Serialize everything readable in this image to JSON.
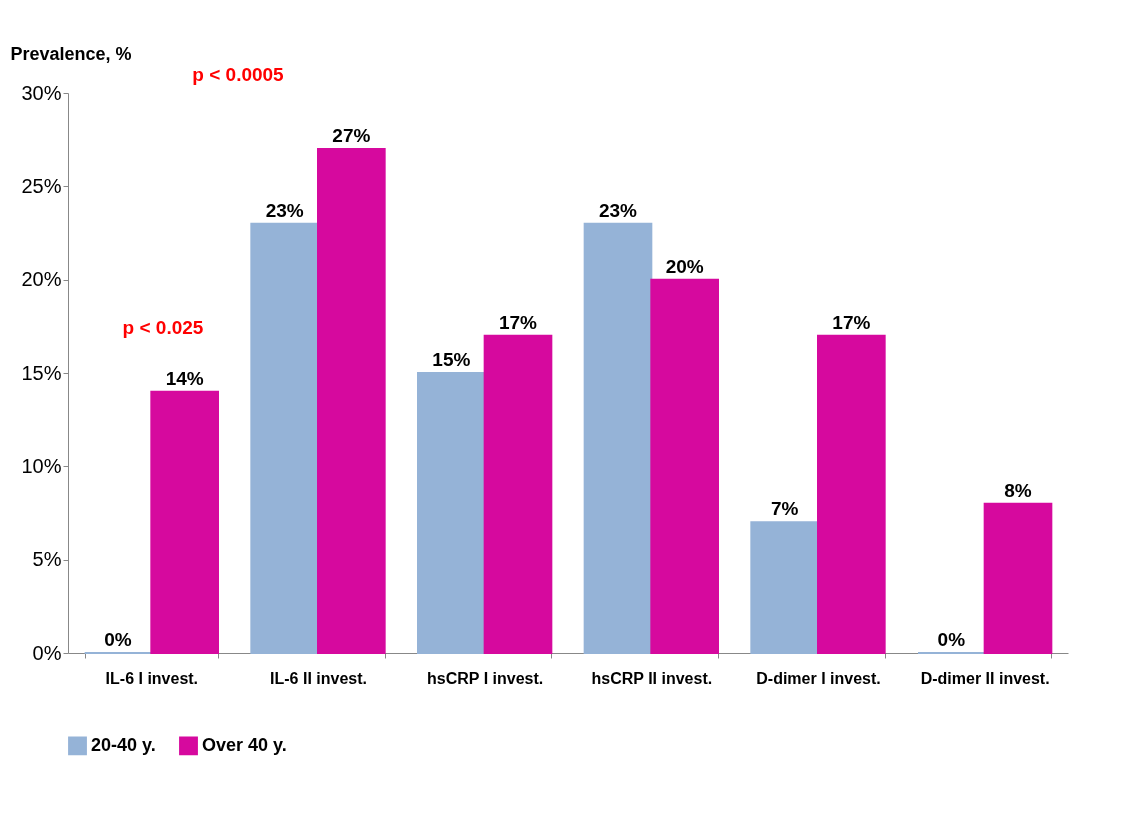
{
  "chart_data": {
    "type": "bar",
    "ylabel": "Prevalence, %",
    "categories": [
      "IL-6 I invest.",
      "IL-6 II invest.",
      "hsCRP I invest.",
      "hsCRP II invest.",
      "D-dimer I invest.",
      "D-dimer II invest."
    ],
    "series": [
      {
        "name": "20-40 y.",
        "color": "#95b3d7",
        "values": [
          0,
          23,
          15,
          23,
          7,
          0
        ],
        "value_labels": [
          "0%",
          "23%",
          "15%",
          "23%",
          "7%",
          "0%"
        ]
      },
      {
        "name": "Over 40 y.",
        "color": "#d6099e",
        "values": [
          14,
          27,
          17,
          20,
          17,
          8
        ],
        "value_labels": [
          "14%",
          "27%",
          "17%",
          "20%",
          "17%",
          "8%"
        ]
      }
    ],
    "ylim": [
      0,
      30
    ],
    "yticks": [
      {
        "value": 0,
        "label": "0%"
      },
      {
        "value": 5,
        "label": "5%"
      },
      {
        "value": 10,
        "label": "10%"
      },
      {
        "value": 15,
        "label": "15%"
      },
      {
        "value": 20,
        "label": "20%"
      },
      {
        "value": 25,
        "label": "25%"
      },
      {
        "value": 30,
        "label": "30%"
      }
    ],
    "grid": false,
    "legend": "bottom",
    "annotations": [
      "p < 0.025",
      "p < 0.0005"
    ]
  }
}
